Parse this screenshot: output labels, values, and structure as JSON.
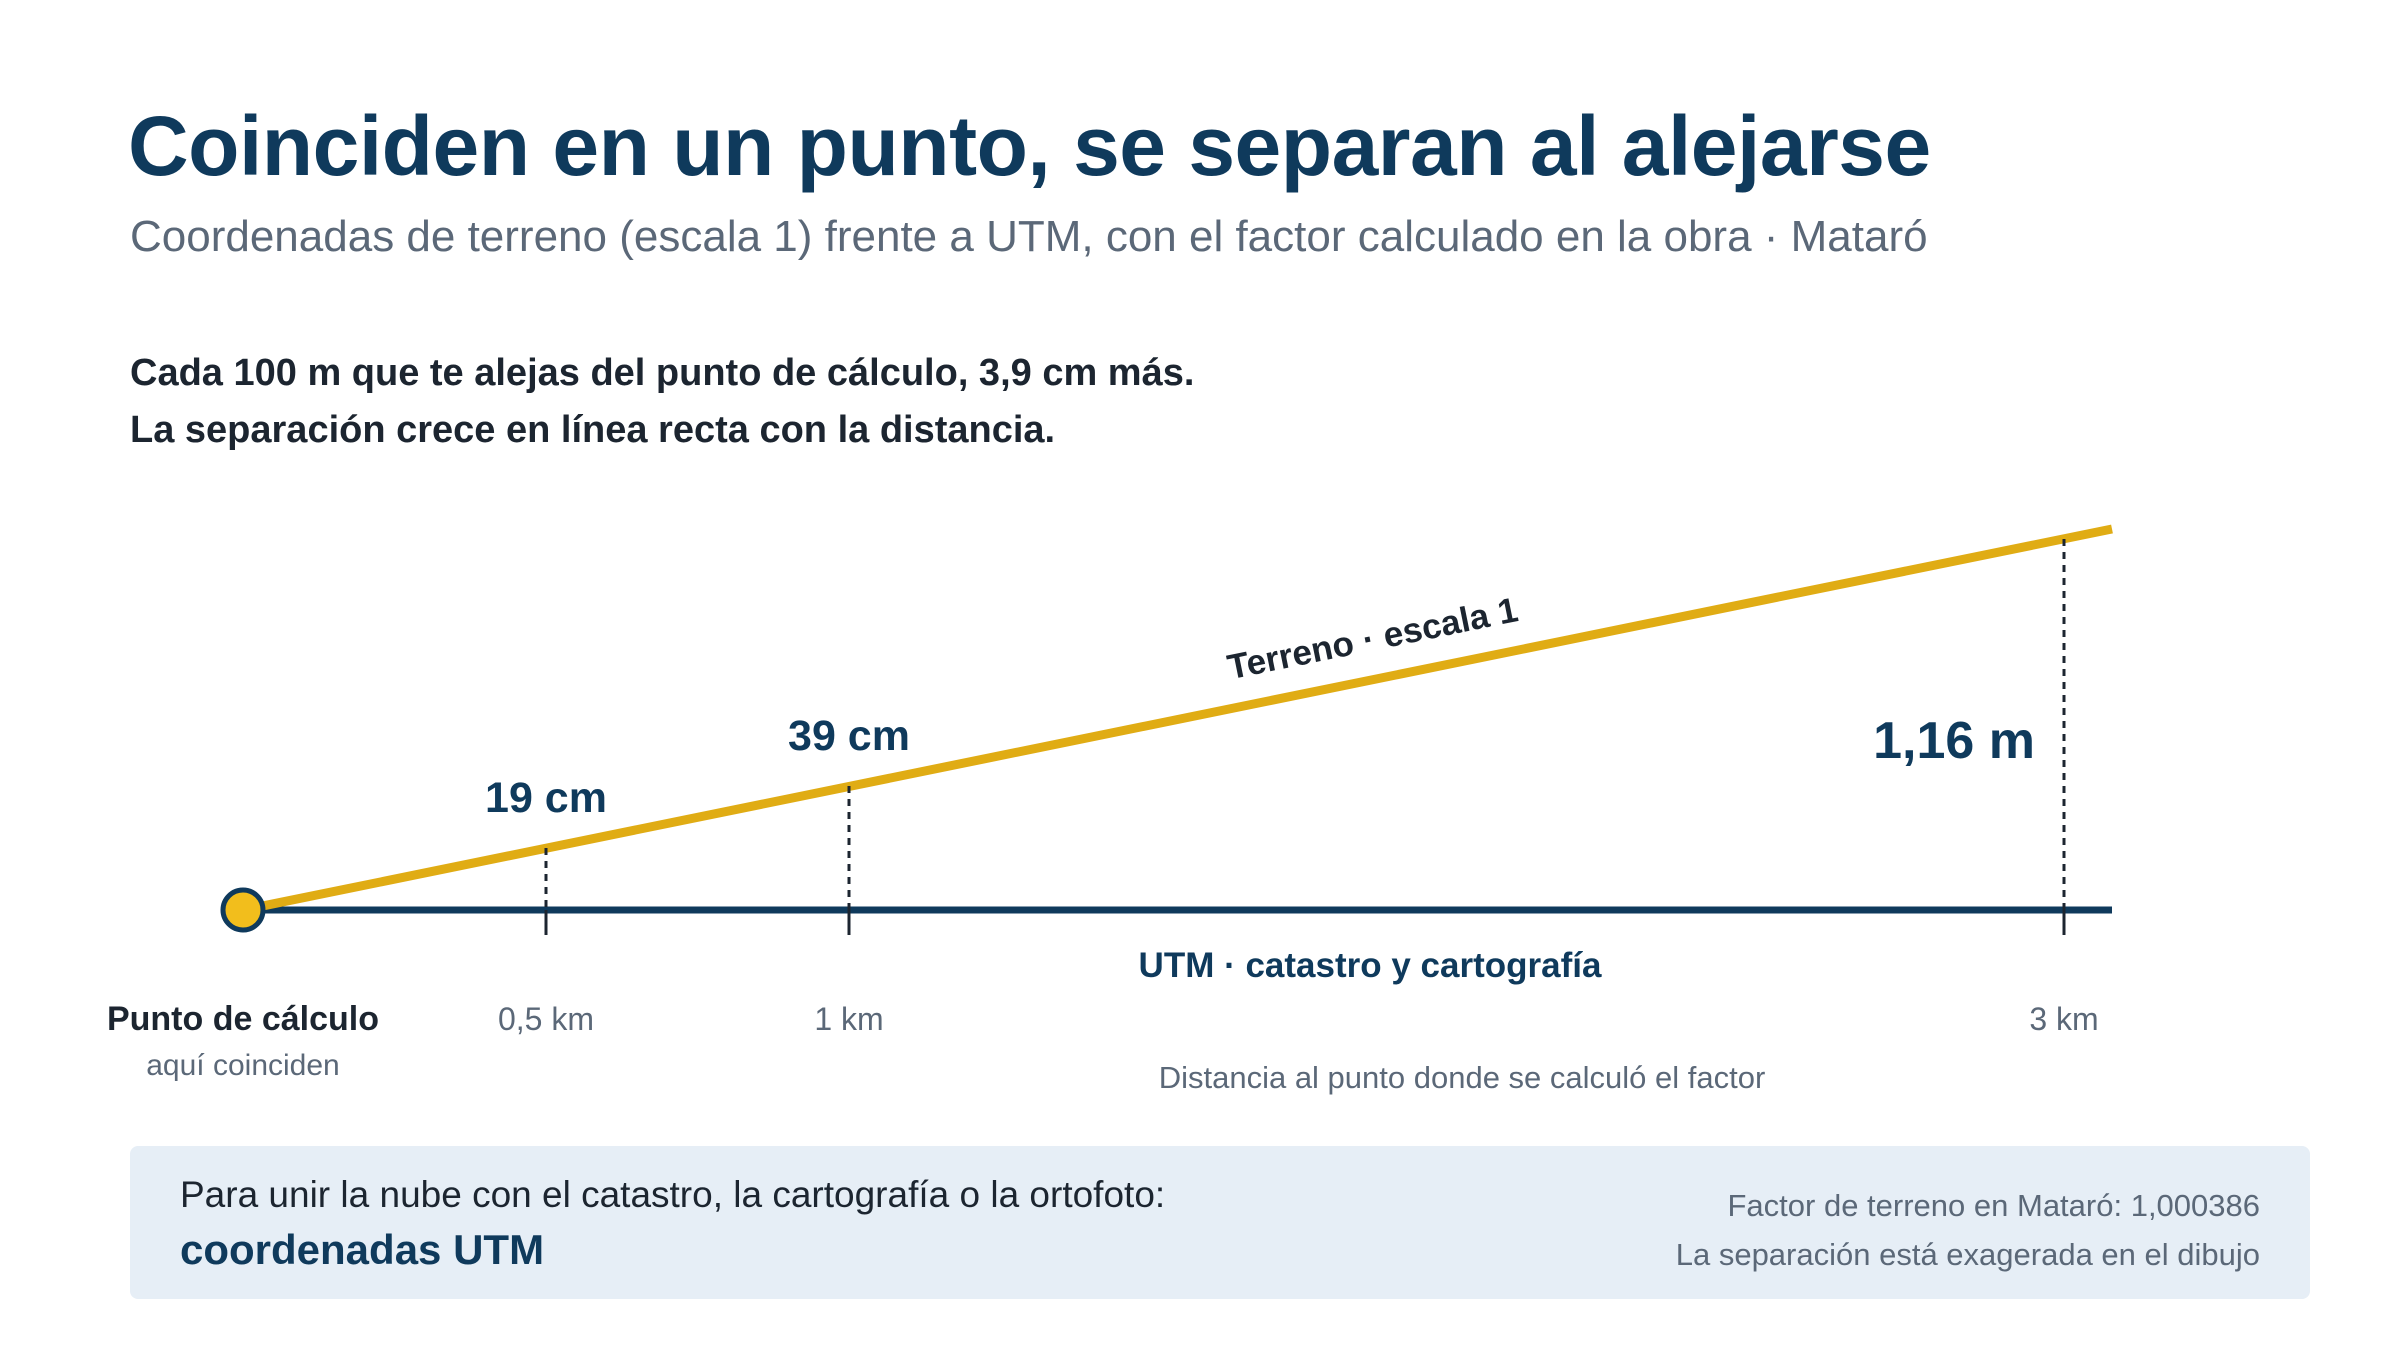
{
  "header": {
    "title": "Coinciden en un punto, se separan al alejarse",
    "subtitle": "Coordenadas de terreno (escala 1) frente a UTM, con el factor calculado en la obra · Mataró"
  },
  "lead": {
    "line1": "Cada 100 m que te alejas del punto de cálculo, 3,9 cm más.",
    "line2": "La separación crece en línea recta con la distancia."
  },
  "diagram": {
    "origin_label": "Punto de cálculo",
    "origin_sublabel": "aquí coinciden",
    "terrain_label": "Terreno · escala 1",
    "utm_label": "UTM · catastro y cartografía",
    "axis_caption": "Distancia al punto donde se calculó el factor",
    "markers": [
      {
        "distance_km": 0.5,
        "distance_label": "0,5 km",
        "separation_label": "19 cm"
      },
      {
        "distance_km": 1,
        "distance_label": "1 km",
        "separation_label": "39 cm"
      },
      {
        "distance_km": 3,
        "distance_label": "3 km",
        "separation_label": "1,16 m"
      }
    ],
    "colors": {
      "terrain": "#e0ac14",
      "utm": "#0f3a5c",
      "origin_fill": "#f2be1c",
      "origin_stroke": "#0f3a5c"
    }
  },
  "footer": {
    "text": "Para unir la nube con el catastro, la cartografía o la ortofoto:",
    "highlight": "coordenadas UTM",
    "factor_note": "Factor de terreno en Mataró: 1,000386",
    "exaggeration_note": "La separación está exagerada en el dibujo"
  }
}
